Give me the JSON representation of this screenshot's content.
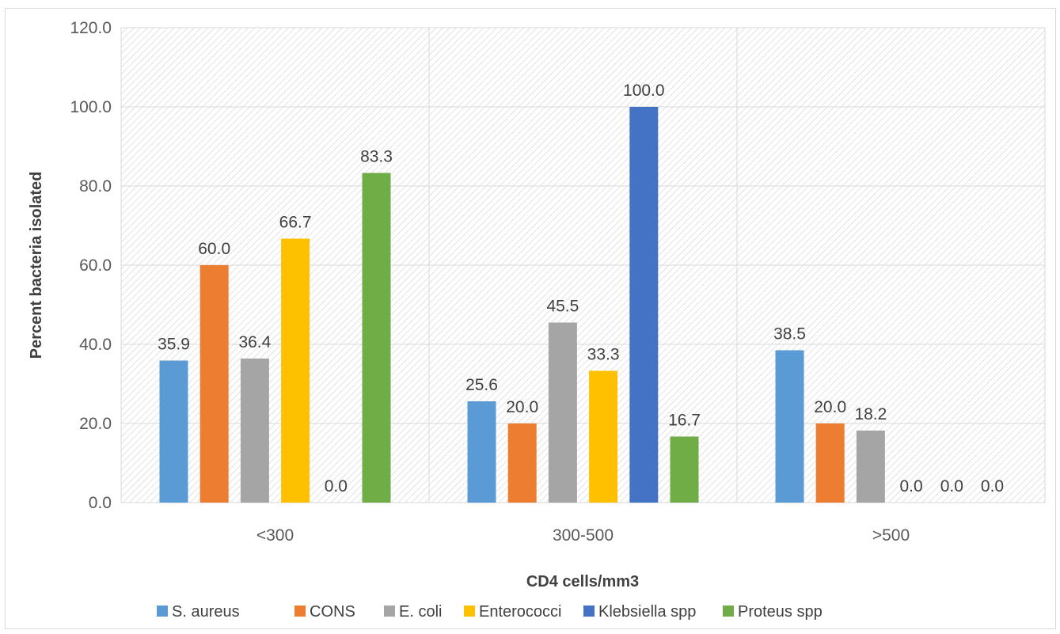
{
  "chart_data": {
    "type": "bar",
    "title": "",
    "xlabel": "CD4 cells/mm3",
    "ylabel": "Percent bacteria isolated",
    "ylim": [
      0,
      120
    ],
    "yticks": [
      "0.0",
      "20.0",
      "40.0",
      "60.0",
      "80.0",
      "100.0",
      "120.0"
    ],
    "categories": [
      "<300",
      "300-500",
      ">500"
    ],
    "series": [
      {
        "name": "S. aureus",
        "color": "#5b9bd5",
        "values": [
          35.9,
          25.6,
          38.5
        ],
        "labels": [
          "35.9",
          "25.6",
          "38.5"
        ]
      },
      {
        "name": "CONS",
        "color": "#ed7d31",
        "values": [
          60.0,
          20.0,
          20.0
        ],
        "labels": [
          "60.0",
          "20.0",
          "20.0"
        ]
      },
      {
        "name": "E. coli",
        "color": "#a5a5a5",
        "values": [
          36.4,
          45.5,
          18.2
        ],
        "labels": [
          "36.4",
          "45.5",
          "18.2"
        ]
      },
      {
        "name": "Enterococci",
        "color": "#ffc000",
        "values": [
          66.7,
          33.3,
          0.0
        ],
        "labels": [
          "66.7",
          "33.3",
          "0.0"
        ]
      },
      {
        "name": "Klebsiella spp",
        "color": "#4472c4",
        "values": [
          0.0,
          100.0,
          0.0
        ],
        "labels": [
          "0.0",
          "100.0",
          "0.0"
        ]
      },
      {
        "name": "Proteus spp",
        "color": "#70ad47",
        "values": [
          83.3,
          16.7,
          0.0
        ],
        "labels": [
          "83.3",
          "16.7",
          "0.0"
        ]
      }
    ],
    "grid": true,
    "plot_background": "hatched",
    "legend": "bottom"
  }
}
